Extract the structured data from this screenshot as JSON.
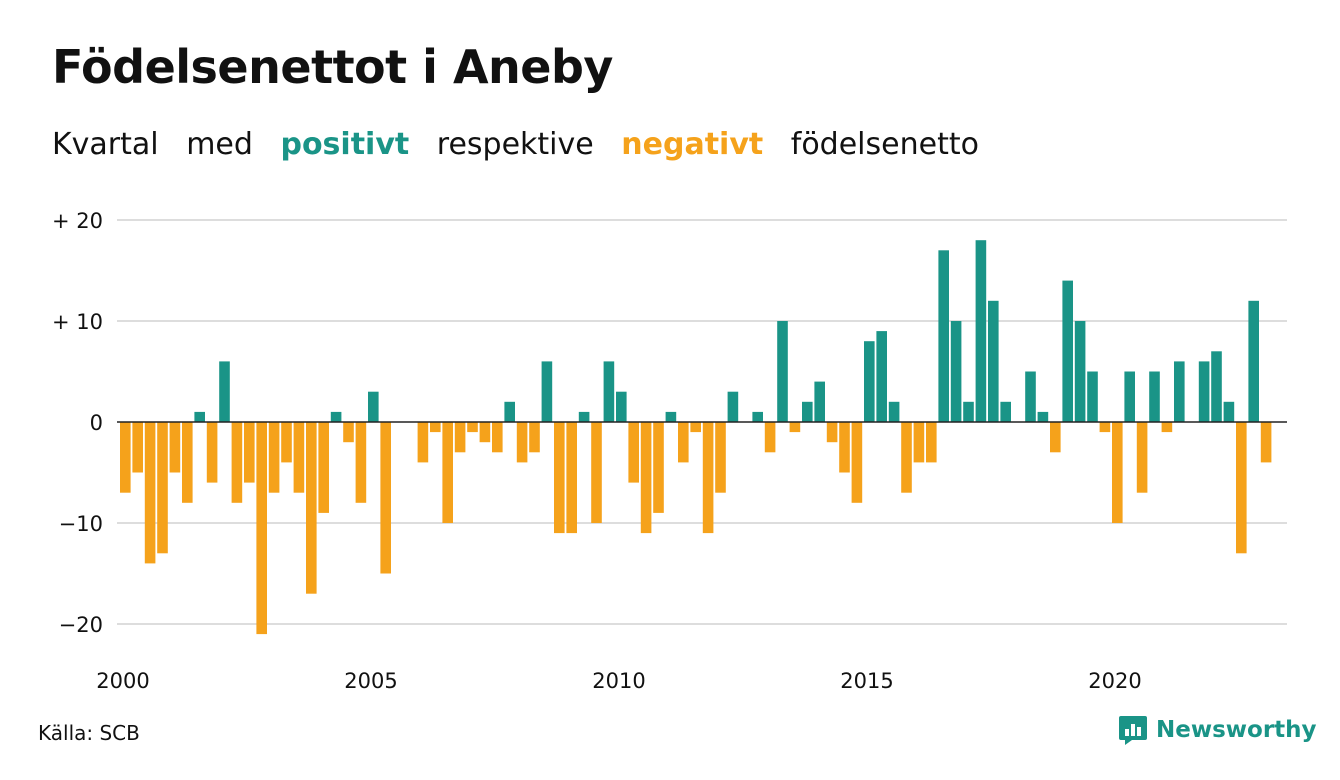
{
  "title": "Födelsenettot i Aneby",
  "subtitle": {
    "parts": [
      "Kvartal",
      "med",
      "positivt",
      "respektive",
      "negativt",
      "födelsenetto"
    ]
  },
  "colors": {
    "positive": "#1a9487",
    "negative": "#f5a21b",
    "grid": "#dddddd",
    "zero": "#222222"
  },
  "source": "Källa: SCB",
  "logo": {
    "text": "Newsworthy",
    "icon": "newsworthy-logo-icon"
  },
  "chart_data": {
    "type": "bar",
    "title": "Födelsenettot i Aneby",
    "x_start_year": 2000,
    "periods_per_year": 4,
    "x_ticks": [
      "2000",
      "2005",
      "2010",
      "2015",
      "2020"
    ],
    "y_ticks": [
      {
        "value": 20,
        "label": "+ 20"
      },
      {
        "value": 10,
        "label": "+ 10"
      },
      {
        "value": 0,
        "label": "0"
      },
      {
        "value": -10,
        "label": "−10"
      },
      {
        "value": -20,
        "label": "−20"
      }
    ],
    "ylim": [
      -21,
      20
    ],
    "grid": true,
    "values": [
      -7,
      -5,
      -14,
      -13,
      -5,
      -8,
      1,
      -6,
      6,
      -8,
      -6,
      -21,
      -7,
      -4,
      -7,
      -17,
      -9,
      1,
      -2,
      -8,
      3,
      -15,
      0,
      0,
      -4,
      -1,
      -10,
      -3,
      -1,
      -2,
      -3,
      2,
      -4,
      -3,
      6,
      -11,
      -11,
      1,
      -10,
      6,
      3,
      -6,
      -11,
      -9,
      1,
      -4,
      -1,
      -11,
      -7,
      3,
      0,
      1,
      -3,
      10,
      -1,
      2,
      4,
      -2,
      -5,
      -8,
      8,
      9,
      2,
      -7,
      -4,
      -4,
      17,
      10,
      2,
      18,
      12,
      2,
      0,
      5,
      1,
      -3,
      14,
      10,
      5,
      -1,
      -10,
      5,
      -7,
      5,
      -1,
      6,
      0,
      6,
      7,
      2,
      -13,
      12,
      -4
    ]
  }
}
